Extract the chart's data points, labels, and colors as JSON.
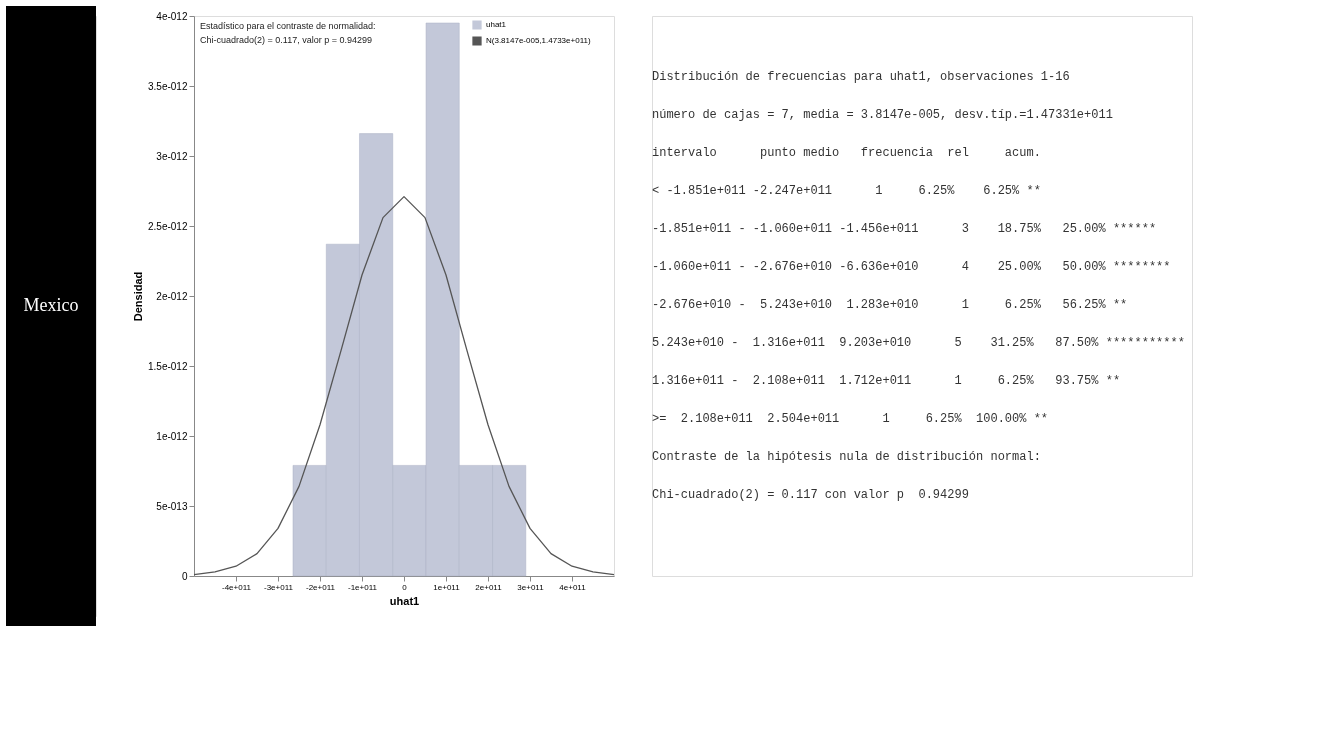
{
  "chart_data": {
    "type": "histogram",
    "xlabel": "uhat1",
    "ylabel": "Densidad",
    "bins": [
      -264300000000.0,
      -185100000000.0,
      -106000000000.0,
      -26760000000.0,
      52430000000.0,
      131600000000.0,
      210800000000.0,
      290000000000.0
    ],
    "series": [
      {
        "name": "uhat1",
        "type": "histogram",
        "color": "#c3c8d9",
        "values": [
          7.9e-13,
          2.37e-12,
          3.16e-12,
          7.9e-13,
          3.95e-12,
          7.9e-13,
          7.9e-13
        ]
      },
      {
        "name": "N(3.8147e-005,1.4733e+011)",
        "type": "line",
        "color": "#555555",
        "x": [
          -500000000000.0,
          -450000000000.0,
          -400000000000.0,
          -350000000000.0,
          -300000000000.0,
          -250000000000.0,
          -200000000000.0,
          -150000000000.0,
          -100000000000.0,
          -50000000000.0,
          0,
          50000000000.0,
          100000000000.0,
          150000000000.0,
          200000000000.0,
          250000000000.0,
          300000000000.0,
          350000000000.0,
          400000000000.0,
          450000000000.0,
          500000000000.0
        ],
        "values": [
          1e-14,
          3e-14,
          7e-14,
          1.6e-13,
          3.4e-13,
          6.4e-13,
          1.08e-12,
          1.61e-12,
          2.15e-12,
          2.56e-12,
          2.71e-12,
          2.56e-12,
          2.15e-12,
          1.61e-12,
          1.08e-12,
          6.4e-13,
          3.4e-13,
          1.6e-13,
          7e-14,
          3e-14,
          1e-14
        ]
      }
    ],
    "xlim": [
      -500000000000.0,
      500000000000.0
    ],
    "xticks": [
      {
        "value": -400000000000.0,
        "label": "-4e+011"
      },
      {
        "value": -300000000000.0,
        "label": "-3e+011"
      },
      {
        "value": -200000000000.0,
        "label": "-2e+011"
      },
      {
        "value": -100000000000.0,
        "label": "-1e+011"
      },
      0,
      {
        "value": 100000000000.0,
        "label": "1e+011"
      },
      {
        "value": 200000000000.0,
        "label": "2e+011"
      },
      {
        "value": 300000000000.0,
        "label": "3e+011"
      },
      {
        "value": 400000000000.0,
        "label": "4e+011"
      }
    ],
    "ylim": [
      0,
      4e-12
    ],
    "yticks": [
      0,
      {
        "value": 5e-13,
        "label": "5e-013"
      },
      {
        "value": 1e-12,
        "label": "1e-012"
      },
      {
        "value": 1.5e-12,
        "label": "1.5e-012"
      },
      {
        "value": 2e-12,
        "label": "2e-012"
      },
      {
        "value": 2.5e-12,
        "label": "2.5e-012"
      },
      {
        "value": 3e-12,
        "label": "3e-012"
      },
      {
        "value": 3.5e-12,
        "label": "3.5e-012"
      },
      {
        "value": 4e-12,
        "label": "4e-012"
      }
    ],
    "grid": false,
    "legend": "top right",
    "annotations": [
      "Mexico",
      "Estadístico para el contraste de normalidad:",
      "Chi-cuadrado(2) = 0.117, valor p = 0.94299",
      "Distribución de frecuencias para uhat1, observaciones 1-16",
      "número de cajas = 7, media = 3.8147e-005, desv.típ.=1.47331e+011",
      "    intervalo      punto medio   frecuencia  rel     acum.",
      "            < -1.851e+011 -2.247e+011      1     6.25%    6.25% **",
      " -1.851e+011 - -1.060e+011 -1.456e+011      3    18.75%   25.00% ******",
      " -1.060e+011 - -2.676e+010 -6.636e+010      4    25.00%   50.00% ********",
      " -2.676e+010 -  5.243e+010  1.283e+010      1     6.25%   56.25% **",
      "  5.243e+010 -  1.316e+011  9.203e+010      5    31.25%   87.50% ***********",
      "  1.316e+011 -  2.108e+011  1.712e+011      1     6.25%   93.75% **",
      "          >=  2.108e+011  2.504e+011      1     6.25%  100.00% **",
      "Contraste de la hipótesis nula de distribución normal:",
      "Chi-cuadrado(2) = 0.117 con valor p  0.94299"
    ]
  }
}
